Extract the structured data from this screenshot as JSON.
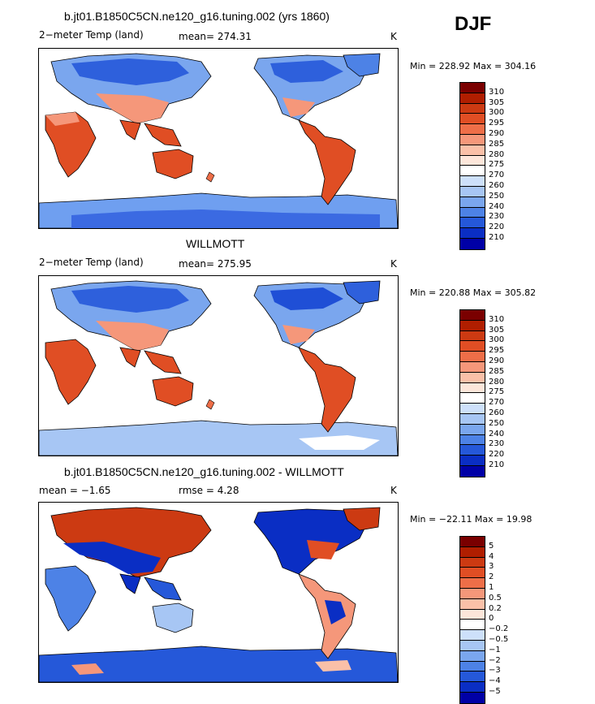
{
  "season": "DJF",
  "panels": [
    {
      "title": "b.jt01.B1850C5CN.ne120_g16.tuning.002 (yrs 1860)",
      "left_label": "2−meter Temp (land)",
      "mid_label": "mean= 274.31",
      "units": "K",
      "minmax": "Min = 228.92 Max = 304.16",
      "colorbar_labels": [
        "310",
        "305",
        "300",
        "295",
        "290",
        "285",
        "280",
        "275",
        "270",
        "260",
        "250",
        "240",
        "230",
        "220",
        "210"
      ],
      "colors": [
        "#7a0000",
        "#b01e00",
        "#cc3a12",
        "#e04e24",
        "#ee6e48",
        "#f5977a",
        "#fac0a8",
        "#fde6da",
        "#ffffff",
        "#cde0fa",
        "#a7c6f4",
        "#7aa6ee",
        "#4d82e6",
        "#2558d9",
        "#0a2ec4",
        "#0000a6"
      ]
    },
    {
      "title": "WILLMOTT",
      "left_label": "2−meter Temp (land)",
      "mid_label": "mean= 275.95",
      "units": "K",
      "minmax": "Min = 220.88 Max = 305.82",
      "colorbar_labels": [
        "310",
        "305",
        "300",
        "295",
        "290",
        "285",
        "280",
        "275",
        "270",
        "260",
        "250",
        "240",
        "230",
        "220",
        "210"
      ],
      "colors": [
        "#7a0000",
        "#b01e00",
        "#cc3a12",
        "#e04e24",
        "#ee6e48",
        "#f5977a",
        "#fac0a8",
        "#fde6da",
        "#ffffff",
        "#cde0fa",
        "#a7c6f4",
        "#7aa6ee",
        "#4d82e6",
        "#2558d9",
        "#0a2ec4",
        "#0000a6"
      ]
    },
    {
      "title": "b.jt01.B1850C5CN.ne120_g16.tuning.002 - WILLMOTT",
      "left_label": "mean =  −1.65",
      "mid_label": "rmse =   4.28",
      "units": "K",
      "minmax": "Min = −22.11 Max =  19.98",
      "colorbar_labels": [
        "5",
        "4",
        "3",
        "2",
        "1",
        "0.5",
        "0.2",
        "0",
        "−0.2",
        "−0.5",
        "−1",
        "−2",
        "−3",
        "−4",
        "−5"
      ],
      "colors": [
        "#7a0000",
        "#b01e00",
        "#cc3a12",
        "#e04e24",
        "#ee6e48",
        "#f5977a",
        "#fac0a8",
        "#fde6da",
        "#ffffff",
        "#cde0fa",
        "#a7c6f4",
        "#7aa6ee",
        "#4d82e6",
        "#2558d9",
        "#0a2ec4",
        "#0000a6"
      ]
    }
  ]
}
